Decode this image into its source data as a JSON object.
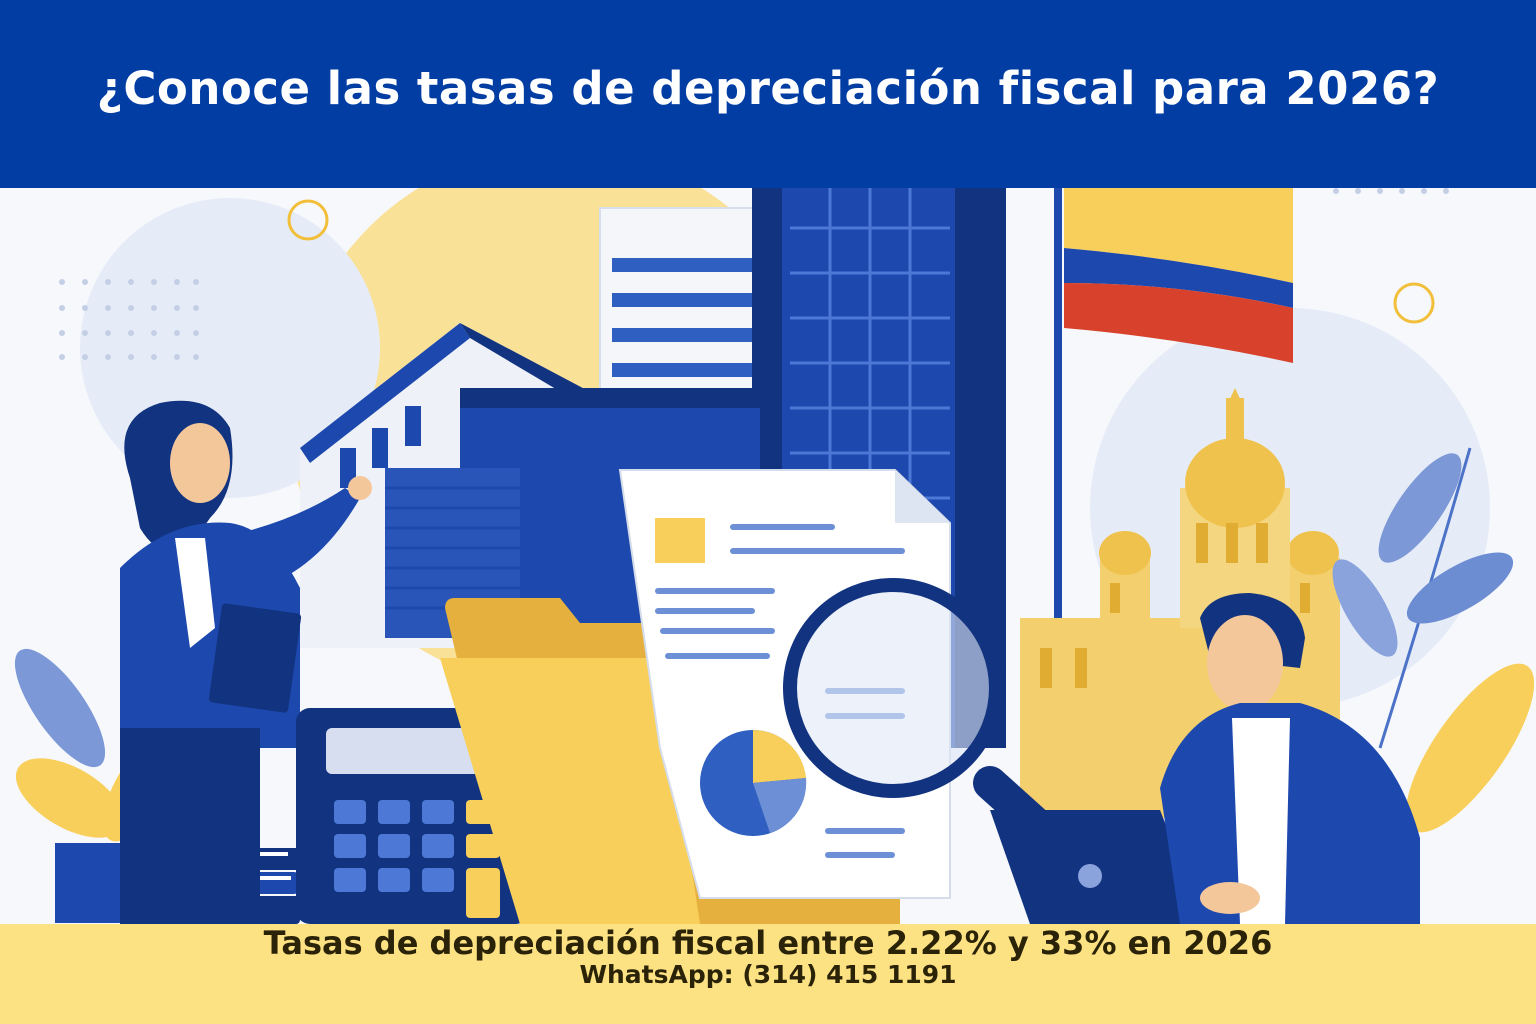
{
  "header": {
    "title": "¿Conoce las tasas de depreciación fiscal para 2026?"
  },
  "illustration": {
    "icons": [
      "building-icon",
      "skyscraper-icon",
      "colombian-flag-icon",
      "cathedral-icon",
      "document-icon",
      "folder-icon",
      "magnifying-glass-icon",
      "calculator-icon",
      "books-icon",
      "laptop-icon",
      "pie-chart-icon",
      "plant-icon"
    ],
    "colors": {
      "primary_blue": "#023da4",
      "dark_blue": "#12337f",
      "yellow": "#f8cf5a",
      "light_yellow": "#fde283",
      "flag_red": "#d8412b",
      "background": "#f6f8fc"
    }
  },
  "footer": {
    "headline": "Tasas de depreciación fiscal entre 2.22% y 33% en 2026",
    "contact": "WhatsApp: (314) 415 1191"
  }
}
